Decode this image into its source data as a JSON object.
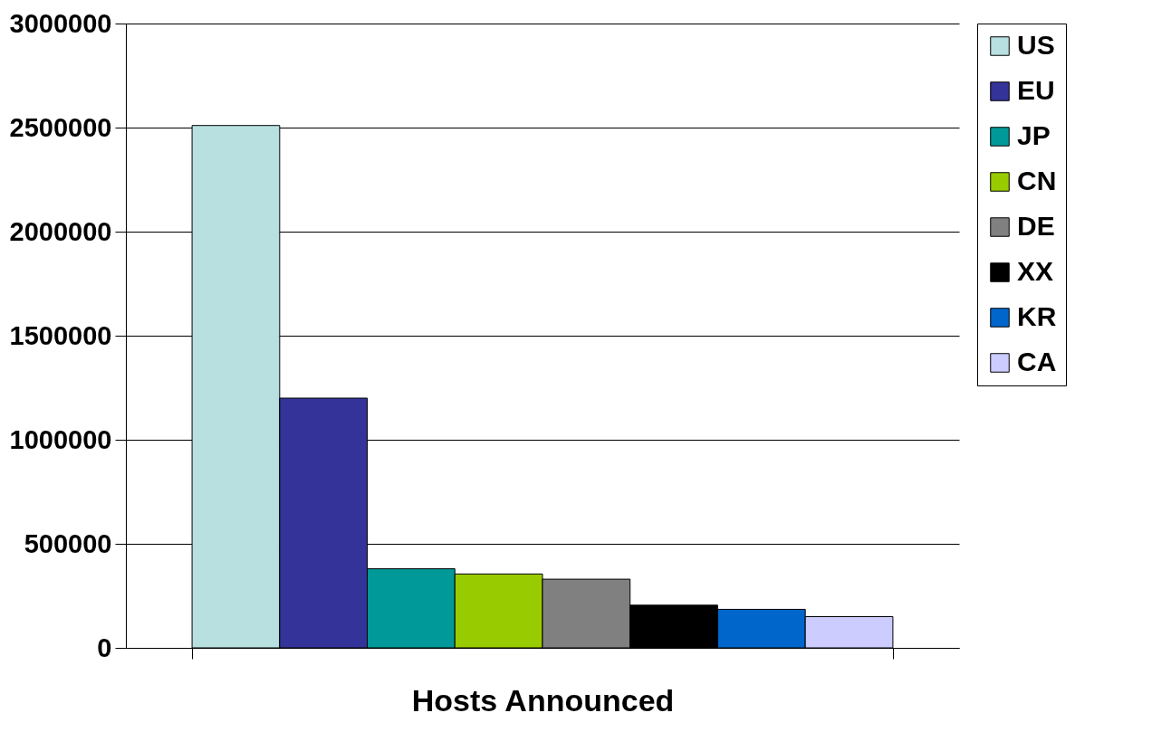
{
  "chart_data": {
    "type": "bar",
    "categories": [
      "Hosts Announced"
    ],
    "series": [
      {
        "name": "US",
        "color": "#b8e0e0",
        "values": [
          2510000
        ]
      },
      {
        "name": "EU",
        "color": "#333399",
        "values": [
          1200000
        ]
      },
      {
        "name": "JP",
        "color": "#009999",
        "values": [
          380000
        ]
      },
      {
        "name": "CN",
        "color": "#99cc00",
        "values": [
          355000
        ]
      },
      {
        "name": "DE",
        "color": "#808080",
        "values": [
          330000
        ]
      },
      {
        "name": "XX",
        "color": "#000000",
        "values": [
          205000
        ]
      },
      {
        "name": "KR",
        "color": "#0066cc",
        "values": [
          185000
        ]
      },
      {
        "name": "CA",
        "color": "#ccccff",
        "values": [
          150000
        ]
      }
    ],
    "ylim": [
      0,
      3000000
    ],
    "yticks": [
      0,
      500000,
      1000000,
      1500000,
      2000000,
      2500000,
      3000000
    ],
    "grid": "y",
    "legend": "right"
  }
}
